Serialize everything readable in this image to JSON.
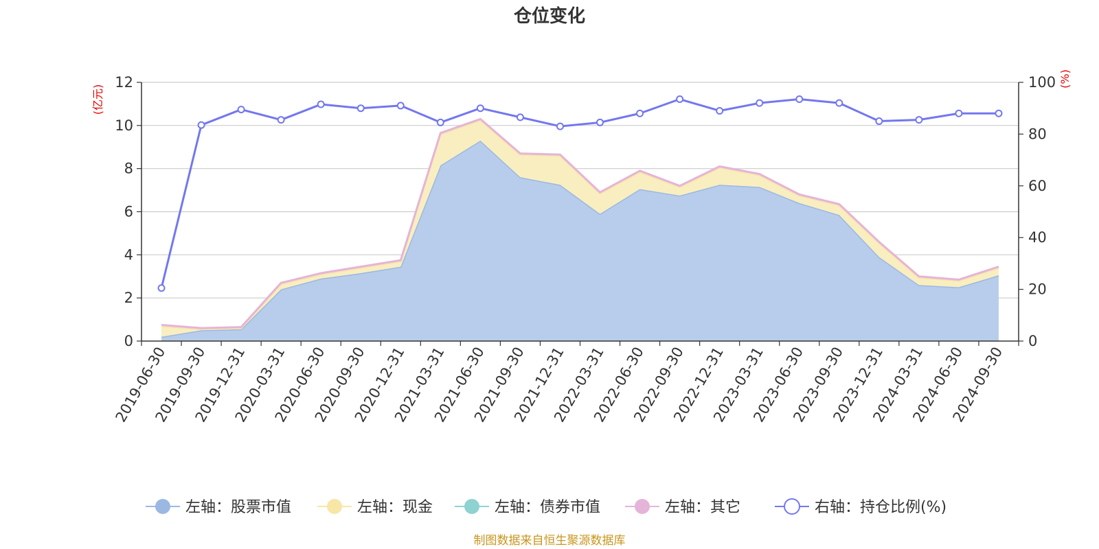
{
  "chart_data": {
    "type": "area",
    "title": "仓位变化",
    "left_axis": {
      "unit": "(亿元)",
      "ylim": [
        0,
        12
      ],
      "ticks": [
        "0",
        "2",
        "4",
        "6",
        "8",
        "10",
        "12"
      ]
    },
    "right_axis": {
      "unit": "(%)",
      "ylim": [
        0,
        100
      ],
      "ticks": [
        "0",
        "20",
        "40",
        "60",
        "80",
        "100"
      ]
    },
    "grid": true,
    "legend_position": "bottom",
    "categories": [
      "2019-06-30",
      "2019-09-30",
      "2019-12-31",
      "2020-03-31",
      "2020-06-30",
      "2020-09-30",
      "2020-12-31",
      "2021-03-31",
      "2021-06-30",
      "2021-09-30",
      "2021-12-31",
      "2022-03-31",
      "2022-06-30",
      "2022-09-30",
      "2022-12-31",
      "2023-03-31",
      "2023-06-30",
      "2023-09-30",
      "2023-12-31",
      "2024-03-31",
      "2024-06-30",
      "2024-09-30"
    ],
    "series": [
      {
        "name": "左轴：股票市值",
        "axis": "left",
        "color": "#9bb8e2",
        "fill": "#b7cdeb",
        "values": [
          0.2,
          0.5,
          0.55,
          2.4,
          2.9,
          3.15,
          3.45,
          8.15,
          9.3,
          7.6,
          7.25,
          5.9,
          7.05,
          6.75,
          7.25,
          7.15,
          6.4,
          5.85,
          3.9,
          2.6,
          2.5,
          3.05
        ]
      },
      {
        "name": "左轴：现金",
        "axis": "left",
        "color": "#f7e6a6",
        "fill": "#f9eec0",
        "values": [
          0.5,
          0.05,
          0.05,
          0.25,
          0.2,
          0.25,
          0.25,
          1.45,
          0.95,
          1.05,
          1.35,
          0.95,
          0.8,
          0.4,
          0.8,
          0.55,
          0.35,
          0.45,
          0.65,
          0.35,
          0.3,
          0.35
        ]
      },
      {
        "name": "左轴：债券市值",
        "axis": "left",
        "color": "#8fd2d2",
        "fill": "#b8e3e3",
        "values": [
          0,
          0,
          0,
          0,
          0,
          0,
          0,
          0,
          0,
          0,
          0,
          0,
          0,
          0,
          0,
          0,
          0,
          0,
          0,
          0,
          0,
          0
        ]
      },
      {
        "name": "左轴：其它",
        "axis": "left",
        "color": "#e5b4d9",
        "fill": "#f1d3e9",
        "values": [
          0.05,
          0.05,
          0.05,
          0.05,
          0.05,
          0.05,
          0.05,
          0.05,
          0.05,
          0.05,
          0.05,
          0.05,
          0.05,
          0.05,
          0.05,
          0.05,
          0.05,
          0.05,
          0.05,
          0.05,
          0.05,
          0.05
        ]
      },
      {
        "name": "右轴：持仓比例(%)",
        "axis": "right",
        "color": "#7377ef",
        "values": [
          20.5,
          83.5,
          89.5,
          85.5,
          91.5,
          90,
          91,
          84.5,
          90,
          86.5,
          83,
          84.5,
          88,
          93.5,
          89,
          92,
          93.5,
          92,
          85,
          85.5,
          88,
          88
        ]
      }
    ]
  },
  "footer": {
    "source": "制图数据来自恒生聚源数据库"
  }
}
